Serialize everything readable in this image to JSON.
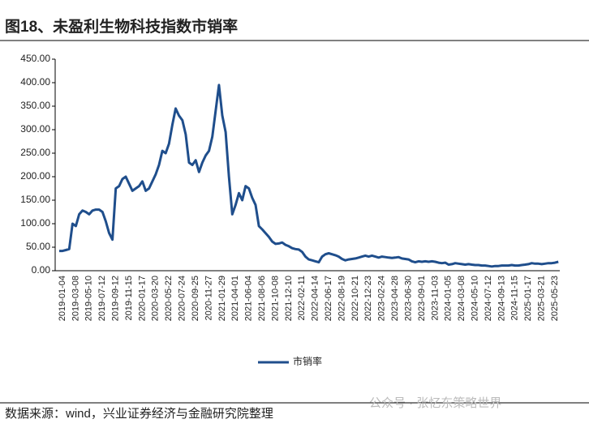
{
  "chart_data": {
    "type": "line",
    "title": "图18、未盈利生物科技指数市销率",
    "source": "数据来源：wind，兴业证券经济与金融研究院整理",
    "watermark": "公众号 · 张忆东策略世界",
    "categories": [
      "2019-01-04",
      null,
      null,
      null,
      "2019-03-08",
      null,
      null,
      null,
      "2019-05-10",
      null,
      null,
      null,
      "2019-07-12",
      null,
      null,
      null,
      "2019-09-12",
      null,
      null,
      null,
      "2019-11-15",
      null,
      null,
      null,
      "2020-01-17",
      null,
      null,
      null,
      "2020-03-20",
      null,
      null,
      null,
      "2020-05-22",
      null,
      null,
      null,
      "2020-07-24",
      null,
      null,
      null,
      "2020-09-25",
      null,
      null,
      null,
      "2020-11-27",
      null,
      null,
      null,
      "2021-01-29",
      null,
      null,
      null,
      "2021-04-01",
      null,
      null,
      null,
      "2021-06-04",
      null,
      null,
      null,
      "2021-08-06",
      null,
      null,
      null,
      "2021-10-08",
      null,
      null,
      null,
      "2021-12-10",
      null,
      null,
      null,
      "2022-02-11",
      null,
      null,
      null,
      "2022-04-14",
      null,
      null,
      null,
      "2022-06-17",
      null,
      null,
      null,
      "2022-08-19",
      null,
      null,
      null,
      "2022-10-21",
      null,
      null,
      null,
      "2022-12-23",
      null,
      null,
      null,
      "2023-02-24",
      null,
      null,
      null,
      "2023-04-28",
      null,
      null,
      null,
      "2023-06-30",
      null,
      null,
      null,
      "2023-09-01",
      null,
      null,
      null,
      "2023-11-03",
      null,
      null,
      null,
      "2024-01-05",
      null,
      null,
      null,
      "2024-03-08",
      null,
      null,
      null,
      "2024-05-10",
      null,
      null,
      null,
      "2024-07-12",
      null,
      null,
      null,
      "2024-09-13",
      null,
      null,
      null,
      "2024-11-15",
      null,
      null,
      null,
      "2025-01-17",
      null,
      null,
      null,
      "2025-03-21",
      null,
      null,
      null,
      "2025-05-23",
      null,
      null
    ],
    "series": [
      {
        "name": "市销率",
        "color": "#1f4e8c",
        "values": [
          42,
          42,
          44,
          46,
          100,
          95,
          120,
          128,
          125,
          120,
          128,
          130,
          130,
          125,
          105,
          80,
          66,
          175,
          180,
          195,
          200,
          185,
          170,
          175,
          180,
          190,
          170,
          175,
          190,
          205,
          225,
          255,
          250,
          270,
          310,
          345,
          330,
          320,
          290,
          230,
          225,
          235,
          210,
          230,
          245,
          255,
          285,
          340,
          395,
          330,
          295,
          200,
          120,
          140,
          165,
          150,
          180,
          175,
          155,
          140,
          95,
          88,
          80,
          72,
          62,
          57,
          58,
          60,
          55,
          52,
          48,
          46,
          45,
          40,
          30,
          24,
          22,
          20,
          18,
          30,
          35,
          37,
          35,
          33,
          30,
          25,
          22,
          24,
          25,
          26,
          28,
          30,
          32,
          30,
          32,
          30,
          28,
          30,
          29,
          28,
          27,
          28,
          29,
          26,
          25,
          24,
          20,
          18,
          20,
          19,
          20,
          19,
          20,
          19,
          17,
          16,
          17,
          13,
          14,
          16,
          15,
          14,
          13,
          14,
          13,
          12,
          12,
          11,
          11,
          10,
          9,
          10,
          10,
          11,
          11,
          11,
          12,
          11,
          11,
          12,
          13,
          14,
          16,
          15,
          15,
          14,
          15,
          16,
          16,
          17,
          19
        ]
      }
    ],
    "ylim": [
      0,
      450
    ],
    "yticks": [
      {
        "value": 0,
        "label": "0.00"
      },
      {
        "value": 50,
        "label": "50.00"
      },
      {
        "value": 100,
        "label": "100.00"
      },
      {
        "value": 150,
        "label": "150.00"
      },
      {
        "value": 200,
        "label": "200.00"
      },
      {
        "value": 250,
        "label": "250.00"
      },
      {
        "value": 300,
        "label": "300.00"
      },
      {
        "value": 350,
        "label": "350.00"
      },
      {
        "value": 400,
        "label": "400.00"
      },
      {
        "value": 450,
        "label": "450.00"
      }
    ]
  }
}
